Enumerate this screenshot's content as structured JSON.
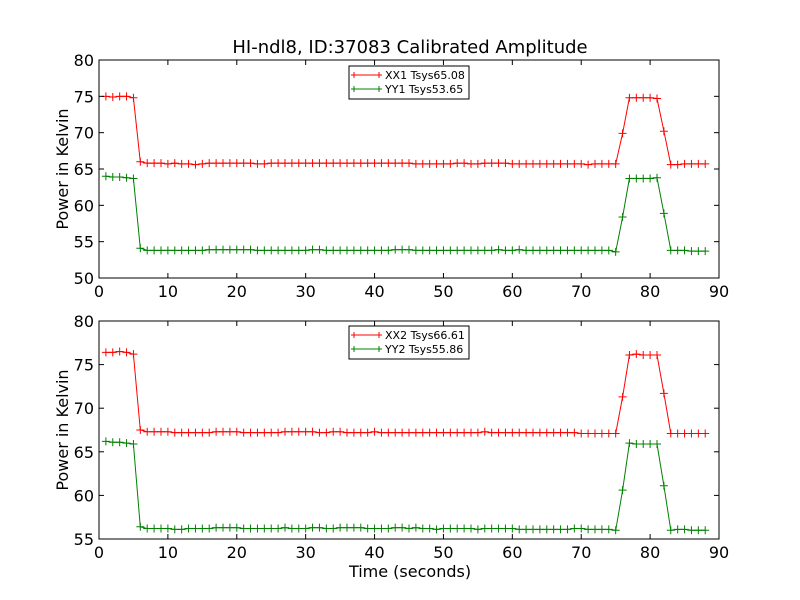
{
  "title": "HI-ndl8, ID:37083 Calibrated Amplitude",
  "xlabel": "Time (seconds)",
  "colors": {
    "red": "#ff0000",
    "green": "#008000"
  },
  "chart_data": [
    {
      "type": "line",
      "title": "HI-ndl8, ID:37083 Calibrated Amplitude",
      "xlabel": "",
      "ylabel": "Power in Kelvin",
      "xlim": [
        0,
        90
      ],
      "ylim": [
        50,
        80
      ],
      "xticks": [
        0,
        10,
        20,
        30,
        40,
        50,
        60,
        70,
        80,
        90
      ],
      "yticks": [
        50,
        55,
        60,
        65,
        70,
        75,
        80
      ],
      "grid": false,
      "legend": "top-center",
      "x": [
        1,
        2,
        3,
        4,
        5,
        6,
        7,
        8,
        9,
        10,
        11,
        12,
        13,
        14,
        15,
        16,
        17,
        18,
        19,
        20,
        21,
        22,
        23,
        24,
        25,
        26,
        27,
        28,
        29,
        30,
        31,
        32,
        33,
        34,
        35,
        36,
        37,
        38,
        39,
        40,
        41,
        42,
        43,
        44,
        45,
        46,
        47,
        48,
        49,
        50,
        51,
        52,
        53,
        54,
        55,
        56,
        57,
        58,
        59,
        60,
        61,
        62,
        63,
        64,
        65,
        66,
        67,
        68,
        69,
        70,
        71,
        72,
        73,
        74,
        75,
        76,
        77,
        78,
        79,
        80,
        81,
        82,
        83,
        84,
        85,
        86,
        87,
        88
      ],
      "series": [
        {
          "name": "XX1 Tsys65.08",
          "color": "#ff0000",
          "values": [
            75.0,
            74.9,
            75.0,
            75.0,
            74.8,
            66.0,
            65.8,
            65.8,
            65.8,
            65.7,
            65.8,
            65.7,
            65.7,
            65.6,
            65.7,
            65.8,
            65.8,
            65.8,
            65.8,
            65.8,
            65.8,
            65.8,
            65.7,
            65.7,
            65.8,
            65.8,
            65.8,
            65.8,
            65.8,
            65.8,
            65.8,
            65.8,
            65.8,
            65.8,
            65.8,
            65.8,
            65.8,
            65.8,
            65.8,
            65.8,
            65.8,
            65.8,
            65.8,
            65.8,
            65.8,
            65.7,
            65.7,
            65.7,
            65.7,
            65.7,
            65.7,
            65.8,
            65.8,
            65.7,
            65.7,
            65.8,
            65.8,
            65.8,
            65.8,
            65.7,
            65.7,
            65.7,
            65.7,
            65.7,
            65.7,
            65.7,
            65.7,
            65.7,
            65.7,
            65.7,
            65.6,
            65.7,
            65.7,
            65.7,
            65.7,
            69.9,
            74.8,
            74.8,
            74.8,
            74.8,
            74.7,
            70.2,
            65.6,
            65.6,
            65.7,
            65.7,
            65.7,
            65.7
          ]
        },
        {
          "name": "YY1 Tsys53.65",
          "color": "#008000",
          "values": [
            64.0,
            63.9,
            63.9,
            63.8,
            63.7,
            54.1,
            53.8,
            53.8,
            53.8,
            53.8,
            53.8,
            53.8,
            53.8,
            53.8,
            53.8,
            53.9,
            53.9,
            53.9,
            53.9,
            53.9,
            53.9,
            53.9,
            53.8,
            53.8,
            53.8,
            53.8,
            53.8,
            53.8,
            53.8,
            53.8,
            53.9,
            53.9,
            53.8,
            53.8,
            53.8,
            53.8,
            53.8,
            53.8,
            53.8,
            53.8,
            53.8,
            53.8,
            53.9,
            53.9,
            53.9,
            53.8,
            53.8,
            53.8,
            53.8,
            53.8,
            53.8,
            53.8,
            53.8,
            53.8,
            53.8,
            53.8,
            53.8,
            53.9,
            53.8,
            53.8,
            53.9,
            53.8,
            53.8,
            53.8,
            53.8,
            53.8,
            53.8,
            53.8,
            53.8,
            53.8,
            53.8,
            53.8,
            53.8,
            53.8,
            53.6,
            58.4,
            63.7,
            63.7,
            63.7,
            63.7,
            63.8,
            58.9,
            53.8,
            53.8,
            53.8,
            53.7,
            53.7,
            53.7
          ]
        }
      ]
    },
    {
      "type": "line",
      "title": "",
      "xlabel": "Time (seconds)",
      "ylabel": "Power in Kelvin",
      "xlim": [
        0,
        90
      ],
      "ylim": [
        55,
        80
      ],
      "xticks": [
        0,
        10,
        20,
        30,
        40,
        50,
        60,
        70,
        80,
        90
      ],
      "yticks": [
        55,
        60,
        65,
        70,
        75,
        80
      ],
      "grid": false,
      "legend": "top-center",
      "x": [
        1,
        2,
        3,
        4,
        5,
        6,
        7,
        8,
        9,
        10,
        11,
        12,
        13,
        14,
        15,
        16,
        17,
        18,
        19,
        20,
        21,
        22,
        23,
        24,
        25,
        26,
        27,
        28,
        29,
        30,
        31,
        32,
        33,
        34,
        35,
        36,
        37,
        38,
        39,
        40,
        41,
        42,
        43,
        44,
        45,
        46,
        47,
        48,
        49,
        50,
        51,
        52,
        53,
        54,
        55,
        56,
        57,
        58,
        59,
        60,
        61,
        62,
        63,
        64,
        65,
        66,
        67,
        68,
        69,
        70,
        71,
        72,
        73,
        74,
        75,
        76,
        77,
        78,
        79,
        80,
        81,
        82,
        83,
        84,
        85,
        86,
        87,
        88
      ],
      "series": [
        {
          "name": "XX2 Tsys66.61",
          "color": "#ff0000",
          "values": [
            76.4,
            76.4,
            76.5,
            76.4,
            76.2,
            67.5,
            67.3,
            67.3,
            67.3,
            67.3,
            67.2,
            67.2,
            67.2,
            67.2,
            67.2,
            67.2,
            67.3,
            67.3,
            67.3,
            67.3,
            67.2,
            67.2,
            67.2,
            67.2,
            67.2,
            67.2,
            67.3,
            67.3,
            67.3,
            67.3,
            67.3,
            67.2,
            67.2,
            67.3,
            67.3,
            67.2,
            67.2,
            67.2,
            67.2,
            67.3,
            67.2,
            67.2,
            67.2,
            67.2,
            67.2,
            67.2,
            67.2,
            67.2,
            67.2,
            67.2,
            67.2,
            67.2,
            67.2,
            67.2,
            67.2,
            67.3,
            67.2,
            67.2,
            67.2,
            67.2,
            67.2,
            67.2,
            67.2,
            67.2,
            67.2,
            67.2,
            67.2,
            67.2,
            67.2,
            67.1,
            67.1,
            67.1,
            67.1,
            67.1,
            67.1,
            71.3,
            76.1,
            76.2,
            76.1,
            76.1,
            76.1,
            71.7,
            67.1,
            67.1,
            67.1,
            67.1,
            67.1,
            67.1
          ]
        },
        {
          "name": "YY2 Tsys55.86",
          "color": "#008000",
          "values": [
            66.2,
            66.1,
            66.1,
            66.0,
            65.9,
            56.4,
            56.2,
            56.2,
            56.2,
            56.2,
            56.1,
            56.1,
            56.2,
            56.2,
            56.2,
            56.2,
            56.3,
            56.3,
            56.3,
            56.3,
            56.2,
            56.2,
            56.2,
            56.2,
            56.2,
            56.2,
            56.3,
            56.2,
            56.2,
            56.2,
            56.3,
            56.3,
            56.2,
            56.2,
            56.3,
            56.3,
            56.3,
            56.3,
            56.2,
            56.2,
            56.2,
            56.2,
            56.3,
            56.3,
            56.2,
            56.3,
            56.2,
            56.2,
            56.1,
            56.2,
            56.2,
            56.2,
            56.2,
            56.2,
            56.1,
            56.2,
            56.2,
            56.2,
            56.2,
            56.2,
            56.1,
            56.1,
            56.1,
            56.1,
            56.1,
            56.1,
            56.1,
            56.1,
            56.2,
            56.2,
            56.1,
            56.1,
            56.1,
            56.1,
            56.0,
            60.6,
            66.0,
            65.9,
            65.9,
            65.9,
            65.9,
            61.1,
            56.0,
            56.1,
            56.1,
            56.0,
            56.0,
            56.0
          ]
        }
      ]
    }
  ]
}
